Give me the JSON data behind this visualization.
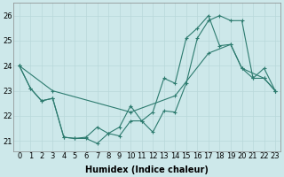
{
  "line1_x": [
    0,
    1,
    2,
    3,
    4,
    5,
    6,
    7,
    8,
    9,
    10,
    11,
    12,
    13,
    14,
    15,
    16,
    17,
    18,
    19,
    20,
    21,
    22,
    23
  ],
  "line1_y": [
    24.0,
    23.1,
    22.6,
    22.7,
    21.15,
    21.1,
    21.1,
    20.9,
    21.3,
    21.2,
    21.8,
    21.8,
    21.35,
    22.2,
    22.15,
    23.3,
    25.1,
    25.8,
    26.0,
    25.8,
    25.8,
    23.5,
    23.5,
    23.0
  ],
  "line2_x": [
    0,
    1,
    2,
    3,
    4,
    5,
    6,
    7,
    8,
    9,
    10,
    11,
    12,
    13,
    14,
    15,
    16,
    17,
    18,
    19,
    20,
    21,
    22,
    23
  ],
  "line2_y": [
    24.0,
    23.1,
    22.6,
    22.7,
    21.15,
    21.1,
    21.15,
    21.55,
    21.3,
    21.55,
    22.4,
    21.8,
    22.15,
    23.5,
    23.3,
    25.1,
    25.5,
    26.0,
    24.8,
    24.85,
    23.9,
    23.5,
    23.9,
    23.0
  ],
  "line3_x": [
    0,
    3,
    10,
    14,
    17,
    19,
    20,
    22,
    23
  ],
  "line3_y": [
    24.0,
    23.0,
    22.15,
    22.8,
    24.5,
    24.85,
    23.9,
    23.5,
    23.0
  ],
  "color": "#2d7b6f",
  "bg_color": "#cde8ea",
  "grid_color": "#b8d8da",
  "xlabel": "Humidex (Indice chaleur)",
  "ylabel_ticks": [
    21,
    22,
    23,
    24,
    25,
    26
  ],
  "xlim": [
    -0.5,
    23.5
  ],
  "ylim": [
    20.6,
    26.5
  ],
  "xticks": [
    0,
    1,
    2,
    3,
    4,
    5,
    6,
    7,
    8,
    9,
    10,
    11,
    12,
    13,
    14,
    15,
    16,
    17,
    18,
    19,
    20,
    21,
    22,
    23
  ],
  "xlabel_fontsize": 7.0,
  "tick_fontsize": 6.0,
  "figwidth": 3.2,
  "figheight": 2.0,
  "dpi": 100
}
